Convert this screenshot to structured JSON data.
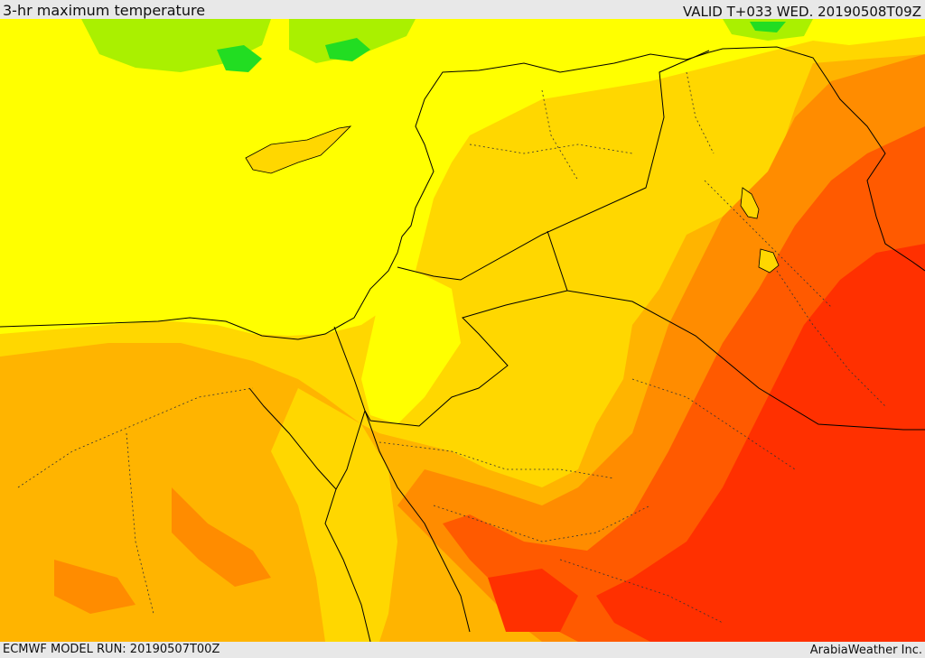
{
  "header": {
    "title": "3-hr maximum temperature",
    "valid": "VALID T+033 WED. 20190508T09Z"
  },
  "footer": {
    "model_run": "ECMWF MODEL RUN: 20190507T00Z",
    "credit": "ArabiaWeather Inc."
  },
  "map": {
    "colors": {
      "green": "#22dd22",
      "light_green": "#aaf000",
      "yellow": "#ffff00",
      "gold": "#ffd700",
      "light_orange": "#ffb400",
      "orange": "#ff8c00",
      "dark_orange": "#ff5a00",
      "red": "#ff3000",
      "sea": "#ffff00",
      "border": "#000000"
    }
  }
}
